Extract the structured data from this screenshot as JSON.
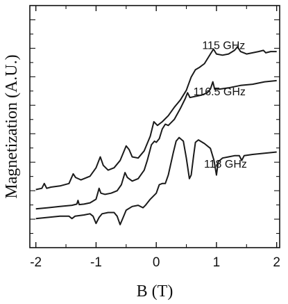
{
  "chart_data": {
    "type": "line",
    "title": "",
    "xlabel": "B (T)",
    "ylabel": "Magnetization (A.U.)",
    "xlim": [
      -2.1,
      2.05
    ],
    "ylim": [
      0,
      1
    ],
    "x_ticks": [
      "-2",
      "-1",
      "0",
      "1",
      "2"
    ],
    "x_tick_values": [
      -2,
      -1,
      0,
      1,
      2
    ],
    "grid": false,
    "legend": "none",
    "series": [
      {
        "name": "115 GHz",
        "label_at": [
          1.12,
          0.82
        ],
        "points": [
          [
            -2.0,
            0.24
          ],
          [
            -1.9,
            0.245
          ],
          [
            -1.86,
            0.265
          ],
          [
            -1.82,
            0.245
          ],
          [
            -1.75,
            0.25
          ],
          [
            -1.6,
            0.255
          ],
          [
            -1.45,
            0.265
          ],
          [
            -1.38,
            0.305
          ],
          [
            -1.34,
            0.29
          ],
          [
            -1.25,
            0.28
          ],
          [
            -1.1,
            0.295
          ],
          [
            -1.0,
            0.33
          ],
          [
            -0.93,
            0.375
          ],
          [
            -0.88,
            0.34
          ],
          [
            -0.8,
            0.32
          ],
          [
            -0.7,
            0.33
          ],
          [
            -0.6,
            0.36
          ],
          [
            -0.5,
            0.42
          ],
          [
            -0.45,
            0.405
          ],
          [
            -0.4,
            0.375
          ],
          [
            -0.3,
            0.37
          ],
          [
            -0.2,
            0.4
          ],
          [
            -0.1,
            0.46
          ],
          [
            -0.04,
            0.52
          ],
          [
            0.02,
            0.505
          ],
          [
            0.1,
            0.52
          ],
          [
            0.2,
            0.545
          ],
          [
            0.3,
            0.58
          ],
          [
            0.4,
            0.61
          ],
          [
            0.5,
            0.65
          ],
          [
            0.58,
            0.705
          ],
          [
            0.65,
            0.735
          ],
          [
            0.72,
            0.745
          ],
          [
            0.8,
            0.76
          ],
          [
            0.9,
            0.8
          ],
          [
            0.95,
            0.82
          ],
          [
            1.0,
            0.8
          ],
          [
            1.1,
            0.795
          ],
          [
            1.2,
            0.8
          ],
          [
            1.3,
            0.815
          ],
          [
            1.35,
            0.83
          ],
          [
            1.4,
            0.81
          ],
          [
            1.5,
            0.8
          ],
          [
            1.6,
            0.805
          ],
          [
            1.7,
            0.81
          ],
          [
            1.78,
            0.815
          ],
          [
            1.82,
            0.805
          ],
          [
            1.9,
            0.81
          ],
          [
            2.0,
            0.81
          ]
        ]
      },
      {
        "name": "116.5 GHz",
        "label_at": [
          1.05,
          0.63
        ],
        "points": [
          [
            -2.0,
            0.16
          ],
          [
            -1.8,
            0.165
          ],
          [
            -1.6,
            0.17
          ],
          [
            -1.4,
            0.175
          ],
          [
            -1.32,
            0.18
          ],
          [
            -1.3,
            0.195
          ],
          [
            -1.28,
            0.178
          ],
          [
            -1.2,
            0.18
          ],
          [
            -1.1,
            0.185
          ],
          [
            -1.0,
            0.2
          ],
          [
            -0.95,
            0.245
          ],
          [
            -0.92,
            0.225
          ],
          [
            -0.85,
            0.22
          ],
          [
            -0.75,
            0.225
          ],
          [
            -0.65,
            0.235
          ],
          [
            -0.58,
            0.26
          ],
          [
            -0.52,
            0.31
          ],
          [
            -0.48,
            0.29
          ],
          [
            -0.4,
            0.275
          ],
          [
            -0.3,
            0.285
          ],
          [
            -0.2,
            0.32
          ],
          [
            -0.15,
            0.36
          ],
          [
            -0.08,
            0.425
          ],
          [
            -0.03,
            0.44
          ],
          [
            0.0,
            0.435
          ],
          [
            0.05,
            0.45
          ],
          [
            0.1,
            0.49
          ],
          [
            0.15,
            0.51
          ],
          [
            0.2,
            0.505
          ],
          [
            0.3,
            0.53
          ],
          [
            0.4,
            0.575
          ],
          [
            0.48,
            0.615
          ],
          [
            0.52,
            0.64
          ],
          [
            0.56,
            0.62
          ],
          [
            0.65,
            0.625
          ],
          [
            0.75,
            0.63
          ],
          [
            0.85,
            0.64
          ],
          [
            0.9,
            0.655
          ],
          [
            0.94,
            0.685
          ],
          [
            0.97,
            0.655
          ],
          [
            1.05,
            0.655
          ],
          [
            1.2,
            0.66
          ],
          [
            1.4,
            0.67
          ],
          [
            1.6,
            0.675
          ],
          [
            1.8,
            0.685
          ],
          [
            2.0,
            0.69
          ]
        ]
      },
      {
        "name": "118 GHz",
        "label_at": [
          1.15,
          0.33
        ],
        "points": [
          [
            -2.0,
            0.12
          ],
          [
            -1.8,
            0.125
          ],
          [
            -1.6,
            0.13
          ],
          [
            -1.45,
            0.13
          ],
          [
            -1.4,
            0.12
          ],
          [
            -1.35,
            0.13
          ],
          [
            -1.2,
            0.135
          ],
          [
            -1.1,
            0.14
          ],
          [
            -1.05,
            0.13
          ],
          [
            -1.0,
            0.1
          ],
          [
            -0.95,
            0.125
          ],
          [
            -0.9,
            0.14
          ],
          [
            -0.8,
            0.145
          ],
          [
            -0.7,
            0.145
          ],
          [
            -0.65,
            0.13
          ],
          [
            -0.6,
            0.095
          ],
          [
            -0.55,
            0.125
          ],
          [
            -0.5,
            0.155
          ],
          [
            -0.4,
            0.17
          ],
          [
            -0.3,
            0.175
          ],
          [
            -0.22,
            0.165
          ],
          [
            -0.18,
            0.175
          ],
          [
            -0.1,
            0.2
          ],
          [
            0.0,
            0.225
          ],
          [
            0.05,
            0.26
          ],
          [
            0.1,
            0.265
          ],
          [
            0.15,
            0.265
          ],
          [
            0.2,
            0.3
          ],
          [
            0.28,
            0.39
          ],
          [
            0.33,
            0.44
          ],
          [
            0.38,
            0.455
          ],
          [
            0.45,
            0.44
          ],
          [
            0.5,
            0.37
          ],
          [
            0.55,
            0.285
          ],
          [
            0.58,
            0.3
          ],
          [
            0.62,
            0.38
          ],
          [
            0.65,
            0.435
          ],
          [
            0.7,
            0.445
          ],
          [
            0.8,
            0.43
          ],
          [
            0.9,
            0.41
          ],
          [
            0.96,
            0.36
          ],
          [
            1.0,
            0.3
          ],
          [
            1.03,
            0.355
          ],
          [
            1.1,
            0.37
          ],
          [
            1.2,
            0.375
          ],
          [
            1.3,
            0.38
          ],
          [
            1.38,
            0.38
          ],
          [
            1.42,
            0.36
          ],
          [
            1.46,
            0.38
          ],
          [
            1.6,
            0.385
          ],
          [
            1.8,
            0.39
          ],
          [
            2.0,
            0.395
          ]
        ]
      }
    ]
  }
}
